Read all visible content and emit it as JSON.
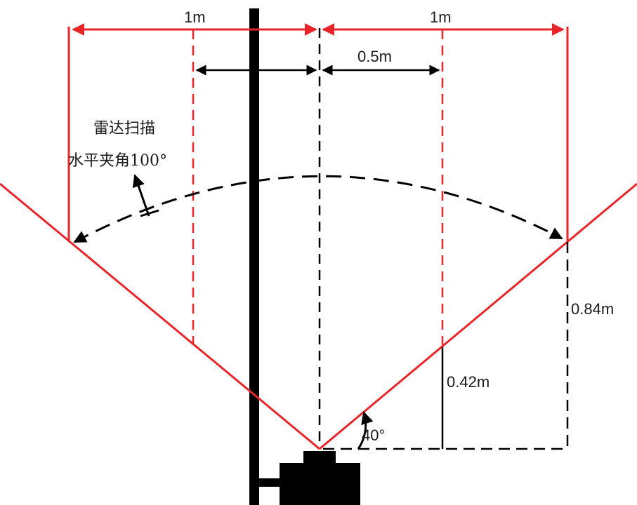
{
  "dimensions": {
    "left_width": "1m",
    "right_width": "1m",
    "half_width": "0.5m",
    "height_outer": "0.84m",
    "height_inner": "0.42m",
    "angle": "40°"
  },
  "radar": {
    "label_line1": "雷达扫描",
    "label_line2": "水平夹角100°"
  },
  "colors": {
    "scan_lines": "#e8262a",
    "structure": "#000000",
    "dimension_text": "#1a1a1a"
  }
}
